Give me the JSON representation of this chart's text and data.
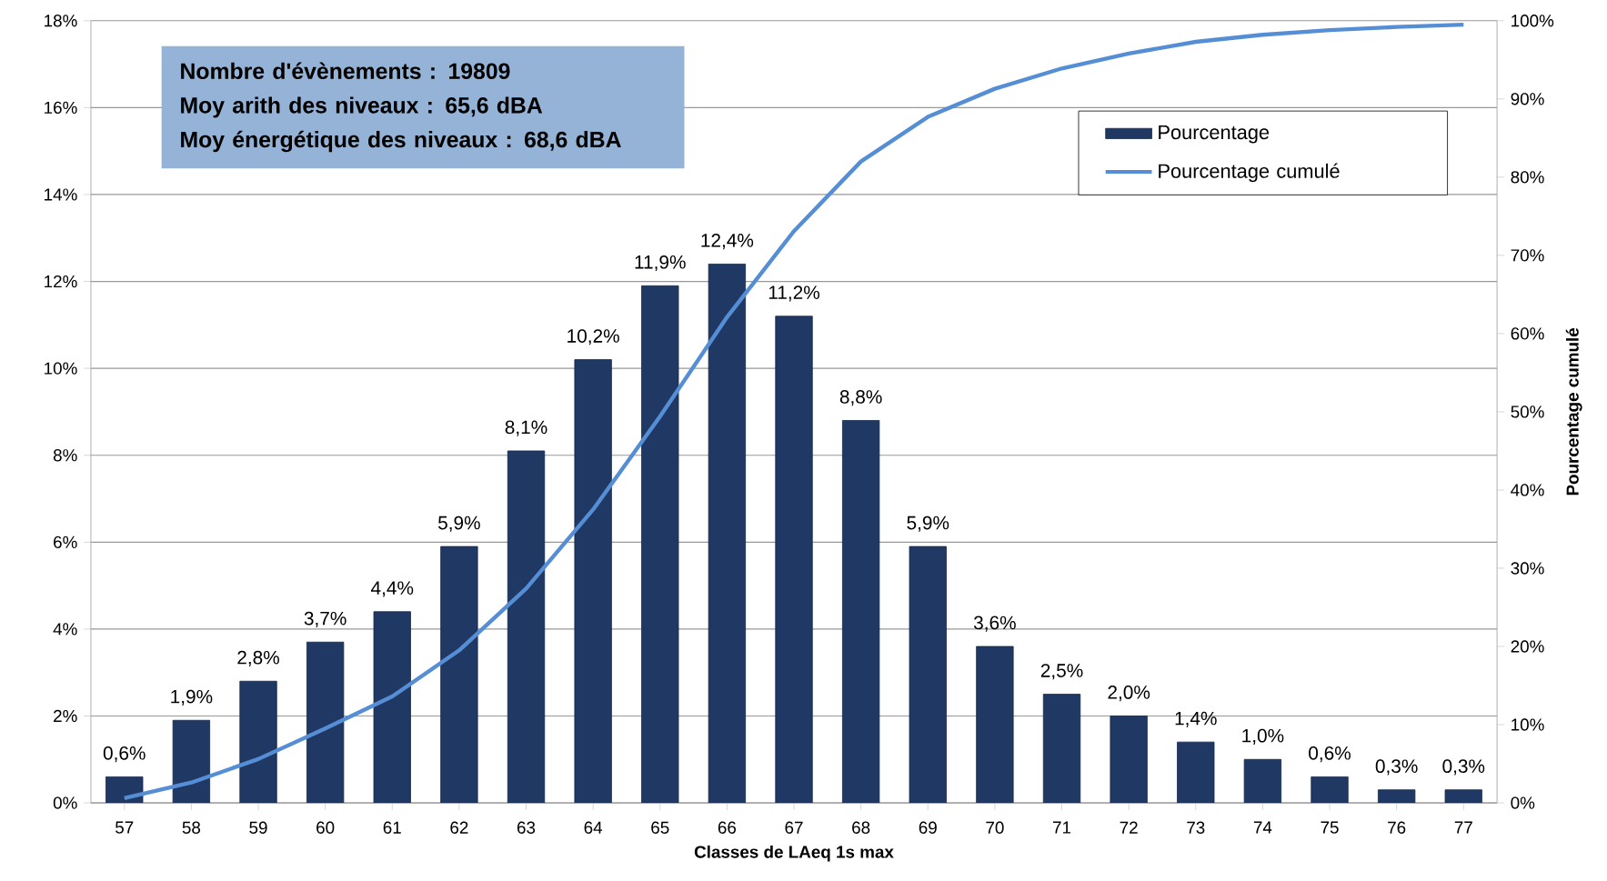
{
  "chart_data": {
    "type": "bar",
    "xlabel": "Classes de LAeq 1s max",
    "y2label": "Pourcentage cumulé",
    "categories": [
      "57",
      "58",
      "59",
      "60",
      "61",
      "62",
      "63",
      "64",
      "65",
      "66",
      "67",
      "68",
      "69",
      "70",
      "71",
      "72",
      "73",
      "74",
      "75",
      "76",
      "77"
    ],
    "series": [
      {
        "name": "Pourcentage",
        "color": "#1f3864",
        "values": [
          0.6,
          1.9,
          2.8,
          3.7,
          4.4,
          5.9,
          8.1,
          10.2,
          11.9,
          12.4,
          11.2,
          8.8,
          5.9,
          3.6,
          2.5,
          2.0,
          1.4,
          1.0,
          0.6,
          0.3,
          0.3
        ],
        "value_labels": [
          "0,6%",
          "1,9%",
          "2,8%",
          "3,7%",
          "4,4%",
          "5,9%",
          "8,1%",
          "10,2%",
          "11,9%",
          "12,4%",
          "11,2%",
          "8,8%",
          "5,9%",
          "3,6%",
          "2,5%",
          "2,0%",
          "1,4%",
          "1,0%",
          "0,6%",
          "0,3%",
          "0,3%"
        ]
      },
      {
        "name": "Pourcentage cumulé",
        "type": "line",
        "axis": "y2",
        "color": "#558ed5",
        "values": [
          0.6,
          2.6,
          5.6,
          9.5,
          13.6,
          19.5,
          27.4,
          37.5,
          49.4,
          62.1,
          73.1,
          82.0,
          87.7,
          91.3,
          93.9,
          95.8,
          97.3,
          98.2,
          98.8,
          99.2,
          99.5
        ]
      }
    ],
    "ylim": [
      0,
      18
    ],
    "yticks": [
      {
        "value": 0,
        "label": "0%"
      },
      {
        "value": 2,
        "label": "2%"
      },
      {
        "value": 4,
        "label": "4%"
      },
      {
        "value": 6,
        "label": "6%"
      },
      {
        "value": 8,
        "label": "8%"
      },
      {
        "value": 10,
        "label": "10%"
      },
      {
        "value": 12,
        "label": "12%"
      },
      {
        "value": 14,
        "label": "14%"
      },
      {
        "value": 16,
        "label": "16%"
      },
      {
        "value": 18,
        "label": "18%"
      }
    ],
    "y2lim": [
      0,
      100
    ],
    "y2ticks": [
      {
        "value": 0,
        "label": "0%"
      },
      {
        "value": 10,
        "label": "10%"
      },
      {
        "value": 20,
        "label": "20%"
      },
      {
        "value": 30,
        "label": "30%"
      },
      {
        "value": 40,
        "label": "40%"
      },
      {
        "value": 50,
        "label": "50%"
      },
      {
        "value": 60,
        "label": "60%"
      },
      {
        "value": 70,
        "label": "70%"
      },
      {
        "value": 80,
        "label": "80%"
      },
      {
        "value": 90,
        "label": "90%"
      },
      {
        "value": 100,
        "label": "100%"
      }
    ],
    "grid": "y",
    "legend": "top right",
    "annotations": [
      "Nombre d'évènements : 19809",
      "Moy arith des niveaux : 65,6 dBA",
      "Moy énergétique des niveaux : 68,6 dBA"
    ]
  }
}
